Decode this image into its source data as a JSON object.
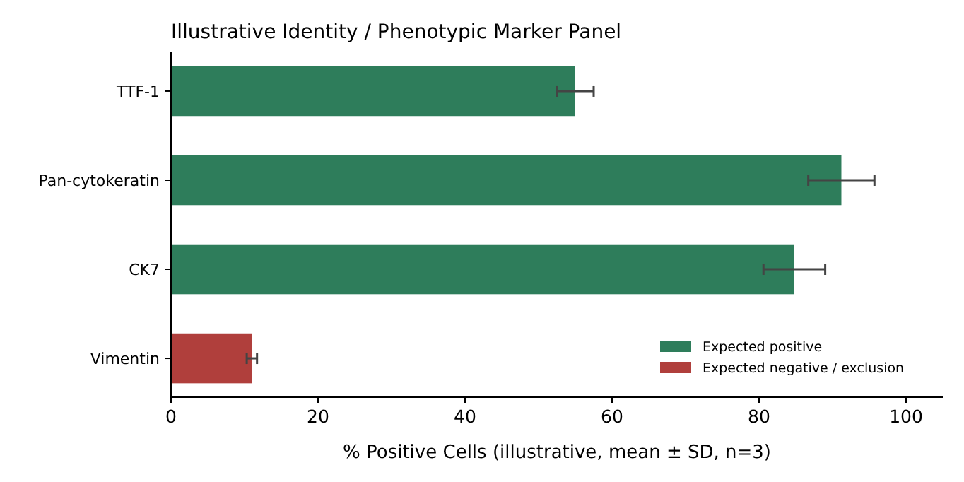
{
  "chart_data": {
    "type": "bar",
    "orientation": "horizontal",
    "title": "Illustrative Identity / Phenotypic Marker Panel",
    "xlabel": "% Positive Cells (illustrative, mean ± SD, n=3)",
    "categories": [
      "TTF-1",
      "Pan-cytokeratin",
      "CK7",
      "Vimentin"
    ],
    "series": [
      {
        "name": "Expected positive",
        "color": "#2e7d5b",
        "values": [
          55.0,
          91.2,
          84.8,
          null
        ],
        "errors": [
          2.5,
          4.5,
          4.2,
          null
        ]
      },
      {
        "name": "Expected negative / exclusion",
        "color": "#b03f3c",
        "values": [
          null,
          null,
          null,
          11.0
        ],
        "errors": [
          null,
          null,
          null,
          0.7
        ]
      }
    ],
    "xlim": [
      0,
      105
    ],
    "xticks": [
      0,
      20,
      40,
      60,
      80,
      100
    ],
    "grid": false,
    "legend": "bottom right"
  }
}
